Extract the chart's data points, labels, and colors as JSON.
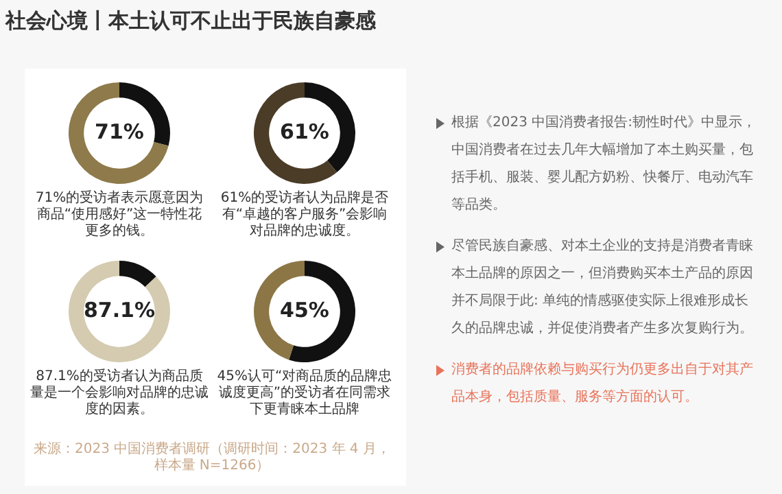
{
  "chart_data": [
    {
      "type": "donut",
      "categories": [
        null,
        null
      ],
      "values": [
        29,
        71
      ],
      "colors": [
        "#111111",
        "#8e7a4a"
      ],
      "value_labels": [
        null,
        "71%"
      ],
      "annotations": [
        "71%的受访者表示愿意因为商品“使用感好”这一特性花更多的钱。"
      ]
    },
    {
      "type": "donut",
      "categories": [
        null,
        null
      ],
      "values": [
        39,
        61
      ],
      "colors": [
        "#111111",
        "#4b3c27"
      ],
      "value_labels": [
        null,
        "61%"
      ],
      "annotations": [
        "61%的受访者认为品牌是否有“卓越的客户服务”会影响对品牌的忠诚度。"
      ]
    },
    {
      "type": "donut",
      "categories": [
        null,
        null
      ],
      "values": [
        12.9,
        87.1
      ],
      "colors": [
        "#111111",
        "#d4cbb0"
      ],
      "value_labels": [
        null,
        "87.1%"
      ],
      "annotations": [
        "87.1%的受访者认为商品质量是一个会影响对品牌的忠诚度的因素。"
      ]
    },
    {
      "type": "donut",
      "categories": [
        null,
        null
      ],
      "values": [
        55,
        45
      ],
      "colors": [
        "#111111",
        "#8c7646"
      ],
      "value_labels": [
        null,
        "45%"
      ],
      "annotations": [
        "45%认可“对商品质的品牌忠诚度更高”的受访者在同需求下更青睐本土品牌"
      ]
    },
    {
      "type": "other",
      "title": "社会心境丨本土认可不止出于民族自豪感",
      "annotations": [
        "来源：2023 中国消费者调研（调研时间：2023 年 4 月，样本量 N=1266）",
        "根据《2023 中国消费者报告:韧性时代》中显示，中国消费者在过去几年大幅增加了本土购买量，包括手机、服装、婴儿配方奶粉、快餐厅、电动汽车等品类。",
        "尽管民族自豪感、对本土企业的支持是消费者青睐本土品牌的原因之一，但消费购买本土产品的原因并不局限于此: 单纯的情感驱使实际上很难形成长久的品牌忠诚，并促使消费者产生多次复购行为。",
        "消费者的品牌依赖与购买行为仍更多出自于对其产品本身，包括质量、服务等方面的认可。"
      ]
    }
  ]
}
